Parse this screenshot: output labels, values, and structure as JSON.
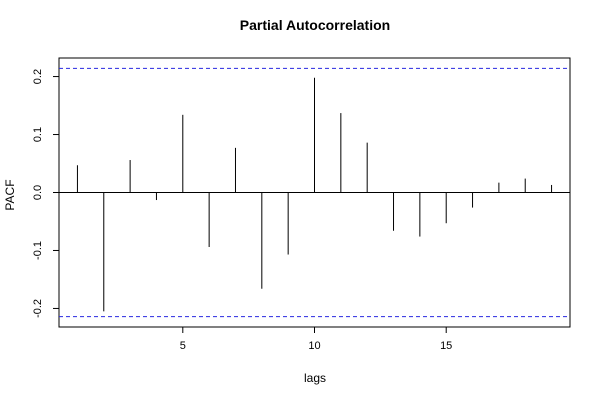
{
  "chart_data": {
    "type": "bar",
    "title": "Partial Autocorrelation",
    "xlabel": "lags",
    "ylabel": "PACF",
    "xlim": [
      0.3,
      19.7
    ],
    "ylim": [
      -0.232,
      0.232
    ],
    "x_ticks": [
      5,
      10,
      15
    ],
    "x_tick_labels": [
      "5",
      "10",
      "15"
    ],
    "y_ticks": [
      -0.2,
      -0.1,
      0.0,
      0.1,
      0.2
    ],
    "y_tick_labels": [
      "-0.2",
      "-0.1",
      "0.0",
      "0.1",
      "0.2"
    ],
    "lags": [
      1,
      2,
      3,
      4,
      5,
      6,
      7,
      8,
      9,
      10,
      11,
      12,
      13,
      14,
      15,
      16,
      17,
      18,
      19
    ],
    "values": [
      0.047,
      -0.205,
      0.056,
      -0.013,
      0.134,
      -0.094,
      0.077,
      -0.166,
      -0.107,
      0.198,
      0.137,
      0.086,
      -0.066,
      -0.076,
      -0.053,
      -0.026,
      0.017,
      0.024,
      0.013
    ],
    "confidence_bounds": [
      0.214,
      -0.214
    ],
    "colors": {
      "spikes": "#000000",
      "zero_line": "#000000",
      "confidence": "#2929e0",
      "frame": "#000000"
    },
    "grid": false
  }
}
